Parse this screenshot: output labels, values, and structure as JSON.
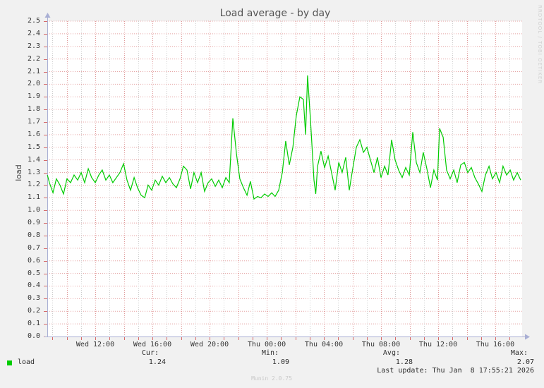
{
  "watermark_right": "RRDTOOL / TOBI OETIKER",
  "generator_version": "Munin 2.0.75",
  "chart_data": {
    "type": "line",
    "title": "Load average - by day",
    "ylabel": "load",
    "ylim": [
      0.0,
      2.5
    ],
    "y_tick_step": 0.1,
    "grid": true,
    "legend_position": "bottom-left",
    "x_hours_note": "hours since Wed 00:00; values > 24 are Thursday",
    "x_hours_range": [
      8.65,
      41.78
    ],
    "x_ticks": [
      {
        "hour": 12,
        "label": "Wed 12:00"
      },
      {
        "hour": 16,
        "label": "Wed 16:00"
      },
      {
        "hour": 20,
        "label": "Wed 20:00"
      },
      {
        "hour": 24,
        "label": "Thu 00:00"
      },
      {
        "hour": 28,
        "label": "Thu 04:00"
      },
      {
        "hour": 32,
        "label": "Thu 08:00"
      },
      {
        "hour": 36,
        "label": "Thu 12:00"
      },
      {
        "hour": 40,
        "label": "Thu 16:00"
      }
    ],
    "legend": [
      {
        "label": "load",
        "color": "#00cc00"
      }
    ],
    "series": [
      {
        "name": "load",
        "color": "#00cc00",
        "points": [
          [
            8.65,
            1.28
          ],
          [
            8.79,
            1.22
          ],
          [
            9.04,
            1.14
          ],
          [
            9.28,
            1.25
          ],
          [
            9.53,
            1.2
          ],
          [
            9.78,
            1.13
          ],
          [
            10.02,
            1.25
          ],
          [
            10.27,
            1.22
          ],
          [
            10.52,
            1.28
          ],
          [
            10.77,
            1.24
          ],
          [
            11.01,
            1.3
          ],
          [
            11.26,
            1.22
          ],
          [
            11.51,
            1.33
          ],
          [
            11.75,
            1.26
          ],
          [
            12.0,
            1.22
          ],
          [
            12.25,
            1.28
          ],
          [
            12.49,
            1.32
          ],
          [
            12.74,
            1.24
          ],
          [
            12.99,
            1.28
          ],
          [
            13.23,
            1.22
          ],
          [
            13.48,
            1.26
          ],
          [
            13.73,
            1.3
          ],
          [
            13.98,
            1.37
          ],
          [
            14.22,
            1.24
          ],
          [
            14.47,
            1.16
          ],
          [
            14.72,
            1.26
          ],
          [
            14.96,
            1.18
          ],
          [
            15.21,
            1.12
          ],
          [
            15.46,
            1.1
          ],
          [
            15.7,
            1.2
          ],
          [
            15.95,
            1.16
          ],
          [
            16.2,
            1.24
          ],
          [
            16.44,
            1.2
          ],
          [
            16.69,
            1.27
          ],
          [
            16.94,
            1.22
          ],
          [
            17.19,
            1.26
          ],
          [
            17.43,
            1.21
          ],
          [
            17.68,
            1.18
          ],
          [
            17.93,
            1.25
          ],
          [
            18.17,
            1.35
          ],
          [
            18.42,
            1.32
          ],
          [
            18.67,
            1.17
          ],
          [
            18.91,
            1.3
          ],
          [
            19.16,
            1.22
          ],
          [
            19.41,
            1.3
          ],
          [
            19.65,
            1.15
          ],
          [
            19.9,
            1.22
          ],
          [
            20.15,
            1.25
          ],
          [
            20.4,
            1.19
          ],
          [
            20.64,
            1.24
          ],
          [
            20.89,
            1.18
          ],
          [
            21.14,
            1.26
          ],
          [
            21.38,
            1.22
          ],
          [
            21.63,
            1.73
          ],
          [
            21.88,
            1.45
          ],
          [
            22.12,
            1.25
          ],
          [
            22.37,
            1.18
          ],
          [
            22.62,
            1.12
          ],
          [
            22.86,
            1.23
          ],
          [
            23.11,
            1.09
          ],
          [
            23.36,
            1.11
          ],
          [
            23.6,
            1.1
          ],
          [
            23.85,
            1.13
          ],
          [
            24.1,
            1.11
          ],
          [
            24.35,
            1.14
          ],
          [
            24.59,
            1.11
          ],
          [
            24.84,
            1.16
          ],
          [
            25.09,
            1.3
          ],
          [
            25.33,
            1.55
          ],
          [
            25.58,
            1.36
          ],
          [
            25.83,
            1.5
          ],
          [
            26.07,
            1.75
          ],
          [
            26.32,
            1.9
          ],
          [
            26.57,
            1.88
          ],
          [
            26.72,
            1.6
          ],
          [
            26.86,
            2.07
          ],
          [
            27.06,
            1.72
          ],
          [
            27.31,
            1.24
          ],
          [
            27.43,
            1.13
          ],
          [
            27.56,
            1.35
          ],
          [
            27.8,
            1.47
          ],
          [
            28.05,
            1.34
          ],
          [
            28.3,
            1.43
          ],
          [
            28.54,
            1.3
          ],
          [
            28.79,
            1.16
          ],
          [
            29.04,
            1.38
          ],
          [
            29.28,
            1.3
          ],
          [
            29.53,
            1.42
          ],
          [
            29.78,
            1.16
          ],
          [
            30.02,
            1.33
          ],
          [
            30.27,
            1.5
          ],
          [
            30.52,
            1.56
          ],
          [
            30.77,
            1.46
          ],
          [
            31.01,
            1.5
          ],
          [
            31.26,
            1.4
          ],
          [
            31.51,
            1.3
          ],
          [
            31.75,
            1.42
          ],
          [
            32.0,
            1.26
          ],
          [
            32.25,
            1.35
          ],
          [
            32.49,
            1.28
          ],
          [
            32.74,
            1.56
          ],
          [
            32.99,
            1.4
          ],
          [
            33.23,
            1.32
          ],
          [
            33.48,
            1.26
          ],
          [
            33.73,
            1.34
          ],
          [
            33.98,
            1.28
          ],
          [
            34.22,
            1.62
          ],
          [
            34.47,
            1.38
          ],
          [
            34.72,
            1.3
          ],
          [
            34.96,
            1.46
          ],
          [
            35.21,
            1.33
          ],
          [
            35.46,
            1.18
          ],
          [
            35.7,
            1.32
          ],
          [
            35.95,
            1.24
          ],
          [
            36.1,
            1.65
          ],
          [
            36.35,
            1.58
          ],
          [
            36.59,
            1.32
          ],
          [
            36.84,
            1.25
          ],
          [
            37.09,
            1.32
          ],
          [
            37.33,
            1.22
          ],
          [
            37.58,
            1.36
          ],
          [
            37.83,
            1.38
          ],
          [
            38.07,
            1.3
          ],
          [
            38.32,
            1.34
          ],
          [
            38.57,
            1.26
          ],
          [
            38.81,
            1.21
          ],
          [
            39.06,
            1.15
          ],
          [
            39.31,
            1.28
          ],
          [
            39.56,
            1.35
          ],
          [
            39.8,
            1.25
          ],
          [
            40.05,
            1.3
          ],
          [
            40.3,
            1.22
          ],
          [
            40.54,
            1.35
          ],
          [
            40.79,
            1.28
          ],
          [
            41.04,
            1.32
          ],
          [
            41.28,
            1.24
          ],
          [
            41.53,
            1.3
          ],
          [
            41.78,
            1.24
          ]
        ]
      }
    ],
    "stats": {
      "cur_label": "Cur:",
      "cur": "1.24",
      "min_label": "Min:",
      "min": "1.09",
      "avg_label": "Avg:",
      "avg": "1.28",
      "max_label": "Max:",
      "max": "2.07"
    },
    "last_update": "Last update: Thu Jan  8 17:55:21 2026",
    "colors": {
      "line": "#00cc00",
      "plot_background": "#ffffff",
      "page_background": "#f1f1f1",
      "grid_major": "#e09a9a",
      "grid_minor": "#cccccc",
      "axis": "#a9afd4",
      "tick": "#d66a6a"
    }
  }
}
